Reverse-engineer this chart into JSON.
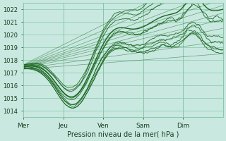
{
  "xlabel": "Pression niveau de la mer( hPa )",
  "bg_color": "#c8e8e0",
  "grid_color": "#88c8a8",
  "line_color": "#1a6620",
  "ylim": [
    1013.5,
    1022.5
  ],
  "yticks": [
    1014,
    1015,
    1016,
    1017,
    1018,
    1019,
    1020,
    1021,
    1022
  ],
  "days": [
    "Mer",
    "Jeu",
    "Ven",
    "Sam",
    "Dim"
  ],
  "day_positions": [
    0,
    48,
    96,
    144,
    192
  ],
  "total_hours": 240
}
